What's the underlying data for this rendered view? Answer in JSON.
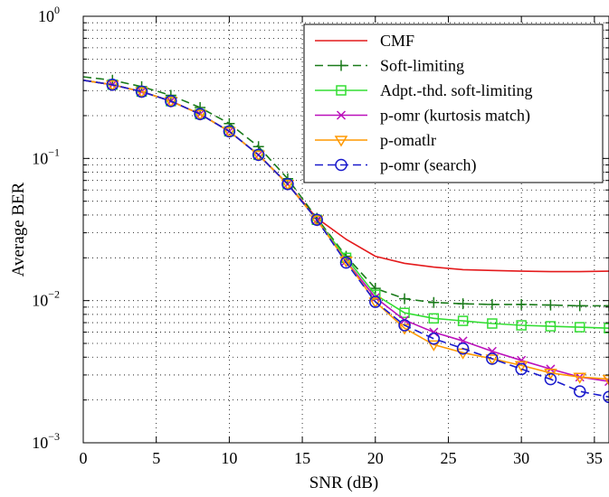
{
  "chart_data": {
    "type": "line",
    "title": "",
    "xlabel": "SNR (dB)",
    "ylabel": "Average BER",
    "xlim": [
      0,
      36
    ],
    "ylim": [
      0.001,
      1
    ],
    "yscale": "log",
    "grid": true,
    "legend_position": "top-right",
    "x_ticks": [
      "0",
      "5",
      "10",
      "15",
      "20",
      "25",
      "30",
      "35"
    ],
    "x_tick_values": [
      0,
      5,
      10,
      15,
      20,
      25,
      30,
      35
    ],
    "y_ticks": [
      {
        "base": "10",
        "exp": "0",
        "value": 1
      },
      {
        "base": "10",
        "exp": "−1",
        "value": 0.1
      },
      {
        "base": "10",
        "exp": "−2",
        "value": 0.01
      },
      {
        "base": "10",
        "exp": "−3",
        "value": 0.001
      }
    ],
    "series": [
      {
        "name": "CMF",
        "color": "#e41a1c",
        "marker": "none",
        "dash": "solid",
        "x": [
          0,
          2,
          4,
          6,
          8,
          10,
          12,
          14,
          16,
          18,
          20,
          22,
          24,
          26,
          28,
          30,
          32,
          34,
          36
        ],
        "y": [
          0.355,
          0.33,
          0.295,
          0.253,
          0.205,
          0.155,
          0.106,
          0.066,
          0.038,
          0.027,
          0.0205,
          0.0183,
          0.0172,
          0.0165,
          0.0163,
          0.0161,
          0.016,
          0.016,
          0.0161
        ]
      },
      {
        "name": "Soft-limiting",
        "color": "#1a7a1a",
        "marker": "plus",
        "dash": "dashed",
        "x": [
          0,
          2,
          4,
          6,
          8,
          10,
          12,
          14,
          16,
          18,
          20,
          22,
          24,
          26,
          28,
          30,
          32,
          34,
          36
        ],
        "y": [
          0.375,
          0.355,
          0.32,
          0.278,
          0.228,
          0.176,
          0.121,
          0.072,
          0.038,
          0.0205,
          0.0122,
          0.0103,
          0.0097,
          0.0095,
          0.0094,
          0.0094,
          0.0093,
          0.0092,
          0.0092
        ]
      },
      {
        "name": "Adpt.-thd. soft-limiting",
        "color": "#33dd33",
        "marker": "square",
        "dash": "solid",
        "x": [
          0,
          2,
          4,
          6,
          8,
          10,
          12,
          14,
          16,
          18,
          20,
          22,
          24,
          26,
          28,
          30,
          32,
          34,
          36
        ],
        "y": [
          0.355,
          0.33,
          0.295,
          0.253,
          0.205,
          0.155,
          0.106,
          0.066,
          0.037,
          0.02,
          0.011,
          0.0082,
          0.0075,
          0.0072,
          0.0069,
          0.0067,
          0.0066,
          0.0065,
          0.0064
        ]
      },
      {
        "name": "p-omr (kurtosis match)",
        "color": "#bb11bb",
        "marker": "x",
        "dash": "solid",
        "x": [
          0,
          2,
          4,
          6,
          8,
          10,
          12,
          14,
          16,
          18,
          20,
          22,
          24,
          26,
          28,
          30,
          32,
          34,
          36
        ],
        "y": [
          0.355,
          0.33,
          0.295,
          0.253,
          0.205,
          0.155,
          0.106,
          0.066,
          0.037,
          0.019,
          0.0105,
          0.0073,
          0.006,
          0.0052,
          0.0044,
          0.0038,
          0.0033,
          0.0029,
          0.0027
        ]
      },
      {
        "name": "p-omatlr",
        "color": "#ff9900",
        "marker": "triangle-down",
        "dash": "solid",
        "x": [
          0,
          2,
          4,
          6,
          8,
          10,
          12,
          14,
          16,
          18,
          20,
          22,
          24,
          26,
          28,
          30,
          32,
          34,
          36
        ],
        "y": [
          0.355,
          0.33,
          0.295,
          0.253,
          0.205,
          0.155,
          0.106,
          0.066,
          0.037,
          0.019,
          0.0098,
          0.0064,
          0.0049,
          0.0043,
          0.0039,
          0.0035,
          0.0031,
          0.0029,
          0.0028
        ]
      },
      {
        "name": "p-omr (search)",
        "color": "#1a1acc",
        "marker": "circle",
        "dash": "dashed",
        "x": [
          0,
          2,
          4,
          6,
          8,
          10,
          12,
          14,
          16,
          18,
          20,
          22,
          24,
          26,
          28,
          30,
          32,
          34,
          36
        ],
        "y": [
          0.355,
          0.33,
          0.295,
          0.253,
          0.205,
          0.155,
          0.106,
          0.066,
          0.037,
          0.0185,
          0.0098,
          0.0067,
          0.0054,
          0.0046,
          0.0039,
          0.0033,
          0.0028,
          0.0023,
          0.0021
        ]
      }
    ]
  }
}
